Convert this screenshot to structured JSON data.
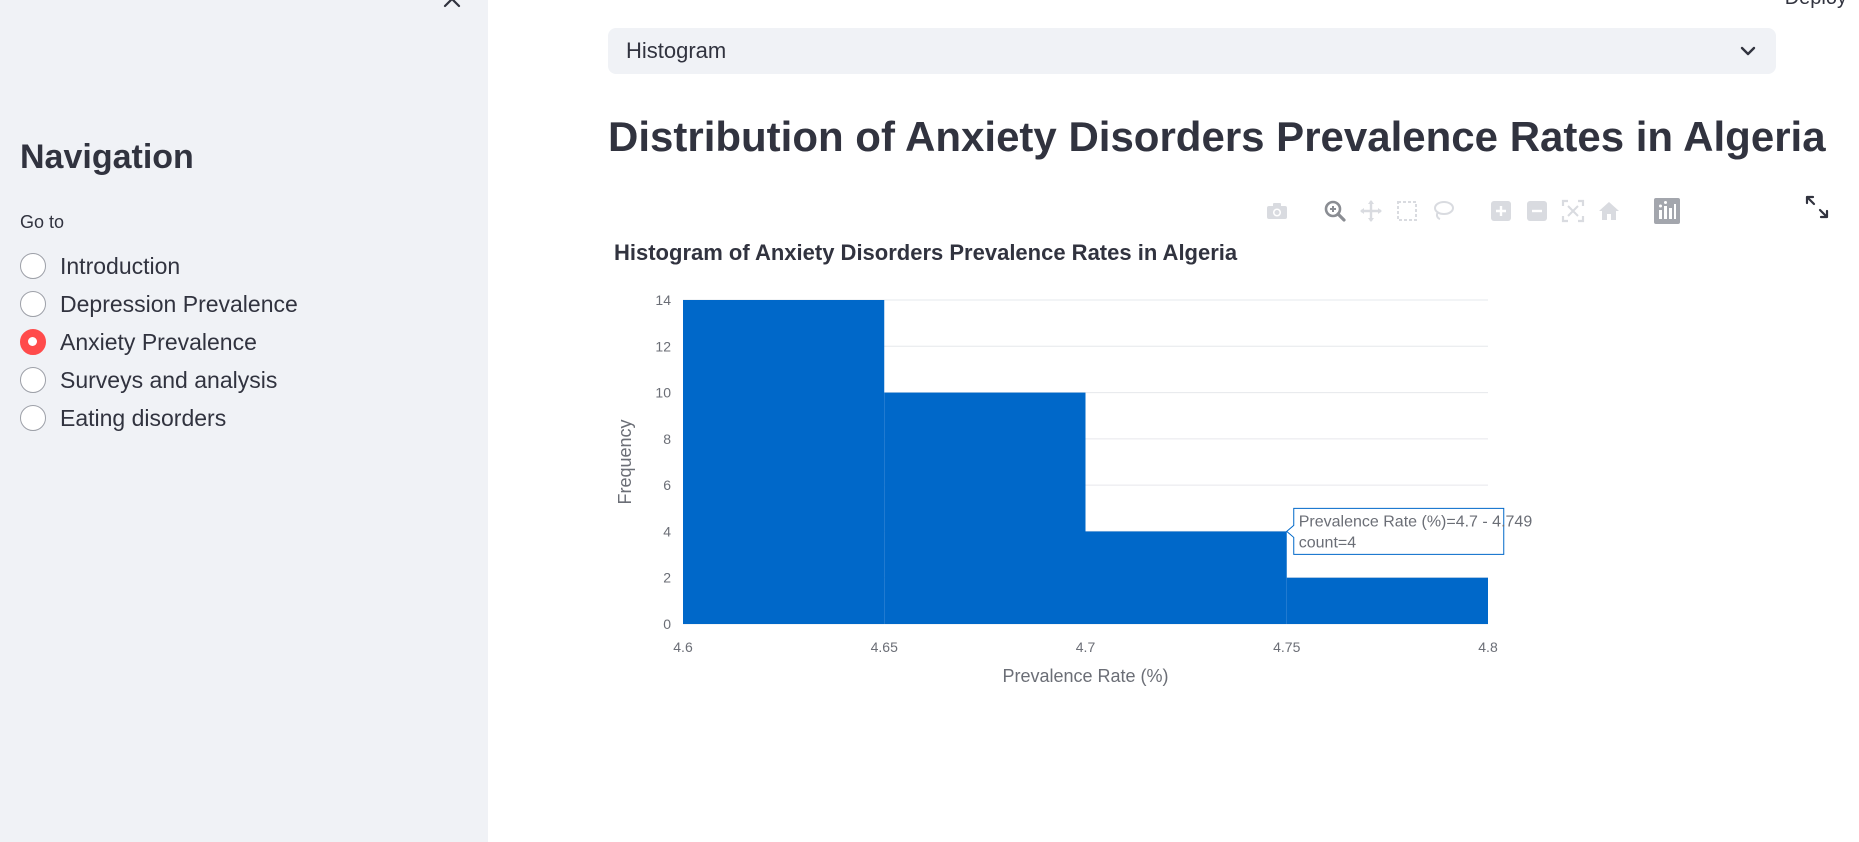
{
  "sidebar": {
    "title": "Navigation",
    "goto_label": "Go to",
    "options": [
      {
        "label": "Introduction",
        "selected": false
      },
      {
        "label": "Depression Prevalence",
        "selected": false
      },
      {
        "label": "Anxiety Prevalence",
        "selected": true
      },
      {
        "label": "Surveys and analysis",
        "selected": false
      },
      {
        "label": "Eating disorders",
        "selected": false
      }
    ]
  },
  "header": {
    "deploy_label": "Deploy"
  },
  "main": {
    "chart_select_value": "Histogram",
    "page_title": "Distribution of Anxiety Disorders Prevalence Rates in Algeria"
  },
  "colors": {
    "accent": "#ff4b4b",
    "bar": "#0068c9",
    "sidebar_bg": "#f0f2f6"
  },
  "tooltip": {
    "line1": "Prevalence Rate (%)=4.7 - 4.749",
    "line2": "count=4"
  },
  "chart_data": {
    "type": "bar",
    "title": "Histogram of Anxiety Disorders Prevalence Rates in Algeria",
    "xlabel": "Prevalence Rate (%)",
    "ylabel": "Frequency",
    "bins": [
      {
        "start": 4.6,
        "end": 4.65,
        "count": 14
      },
      {
        "start": 4.65,
        "end": 4.7,
        "count": 10
      },
      {
        "start": 4.7,
        "end": 4.75,
        "count": 4
      },
      {
        "start": 4.75,
        "end": 4.8,
        "count": 2
      }
    ],
    "xlim": [
      4.6,
      4.8
    ],
    "ylim": [
      0,
      14
    ],
    "x_ticks": [
      "4.6",
      "4.65",
      "4.7",
      "4.75",
      "4.8"
    ],
    "y_ticks": [
      "0",
      "2",
      "4",
      "6",
      "8",
      "10",
      "12",
      "14"
    ],
    "grid": true
  }
}
